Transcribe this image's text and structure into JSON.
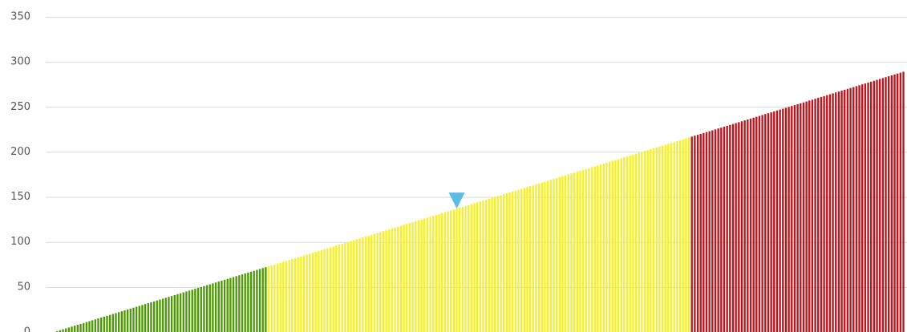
{
  "chart_data": {
    "type": "bar",
    "ylim": [
      0,
      350
    ],
    "yticks": [
      0,
      50,
      100,
      150,
      200,
      250,
      300,
      350
    ],
    "grid": true,
    "series": [
      {
        "color": "#4e9a06",
        "values": [
          1,
          2,
          3,
          4,
          5,
          6,
          7,
          8,
          9,
          10,
          11,
          12,
          13,
          14,
          15,
          16,
          17,
          18,
          19,
          20,
          21,
          22,
          23,
          24,
          25,
          26,
          27,
          28,
          29,
          30,
          31,
          32,
          33,
          34,
          35,
          36,
          37,
          38,
          39,
          40,
          41,
          42,
          43,
          44,
          45,
          46,
          47,
          48,
          49,
          50,
          51,
          52,
          53,
          54,
          55,
          56,
          57,
          58,
          59,
          60,
          61,
          62,
          63,
          64,
          65,
          66,
          67,
          68,
          69,
          70,
          71,
          72
        ]
      },
      {
        "color": "#f5f02a",
        "values": [
          73,
          74,
          75,
          76,
          77,
          78,
          79,
          80,
          81,
          82,
          83,
          84,
          85,
          86,
          87,
          88,
          89,
          90,
          91,
          92,
          93,
          94,
          95,
          96,
          97,
          98,
          99,
          100,
          101,
          102,
          103,
          104,
          105,
          106,
          107,
          108,
          109,
          110,
          111,
          112,
          113,
          114,
          115,
          116,
          117,
          118,
          119,
          120,
          121,
          122,
          123,
          124,
          125,
          126,
          127,
          128,
          129,
          130,
          131,
          132,
          133,
          134,
          135,
          136,
          137,
          138,
          139,
          140,
          141,
          142,
          143,
          144,
          145,
          146,
          147,
          148,
          149,
          150,
          151,
          152,
          153,
          154,
          155,
          156,
          157,
          158,
          159,
          160,
          161,
          162,
          163,
          164,
          165,
          166,
          167,
          168,
          169,
          170,
          171,
          172,
          173,
          174,
          175,
          176,
          177,
          178,
          179,
          180,
          181,
          182,
          183,
          184,
          185,
          186,
          187,
          188,
          189,
          190,
          191,
          192,
          193,
          194,
          195,
          196,
          197,
          198,
          199,
          200,
          201,
          202,
          203,
          204,
          205,
          206,
          207,
          208,
          209,
          210,
          211,
          212,
          213,
          214,
          215,
          216
        ]
      },
      {
        "color": "#c0141c",
        "values": [
          217,
          218,
          219,
          220,
          221,
          222,
          223,
          224,
          225,
          226,
          227,
          228,
          229,
          230,
          231,
          232,
          233,
          234,
          235,
          236,
          237,
          238,
          239,
          240,
          241,
          242,
          243,
          244,
          245,
          246,
          247,
          248,
          249,
          250,
          251,
          252,
          253,
          254,
          255,
          256,
          257,
          258,
          259,
          260,
          261,
          262,
          263,
          264,
          265,
          266,
          267,
          268,
          269,
          270,
          271,
          272,
          273,
          274,
          275,
          276,
          277,
          278,
          279,
          280,
          281,
          282,
          283,
          284,
          285,
          286,
          287,
          288,
          289
        ]
      }
    ],
    "marker": {
      "x": 137,
      "y": 137,
      "color": "#5bbce4"
    }
  }
}
